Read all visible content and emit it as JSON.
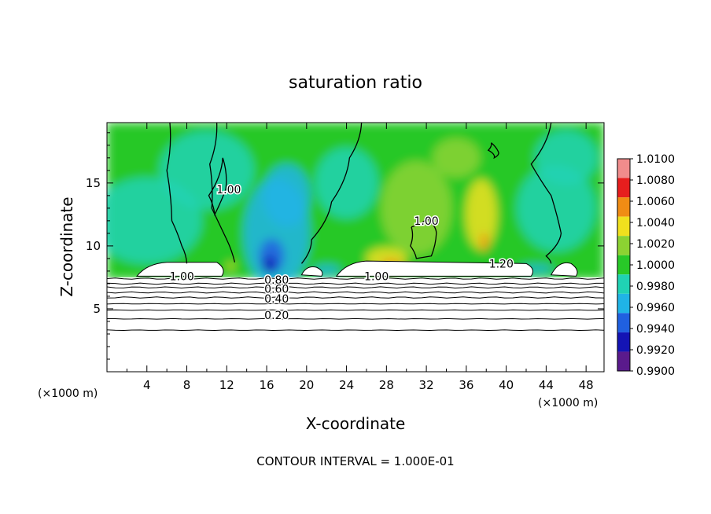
{
  "chart_data": {
    "type": "heatmap",
    "title": "saturation ratio",
    "xlabel": "X-coordinate",
    "ylabel": "Z-coordinate",
    "x_unit_left": "(×1000 m)",
    "x_unit_right": "(×1000 m)",
    "xlim": [
      0,
      49.8
    ],
    "ylim": [
      0,
      19.8
    ],
    "x_ticks": [
      4,
      8,
      12,
      16,
      20,
      24,
      28,
      32,
      36,
      40,
      44,
      48
    ],
    "y_ticks": [
      5,
      10,
      15
    ],
    "footer": "CONTOUR INTERVAL = 1.000E-01",
    "colorbar": {
      "levels": [
        "0.9900",
        "0.9920",
        "0.9940",
        "0.9960",
        "0.9980",
        "1.0000",
        "1.0020",
        "1.0040",
        "1.0060",
        "1.0080",
        "1.0100"
      ],
      "colors": [
        "#5a1a8c",
        "#1414b4",
        "#2060e0",
        "#20b4e6",
        "#20d2b4",
        "#28c828",
        "#8cd232",
        "#f0e01e",
        "#f08c14",
        "#e61e1e",
        "#f08c8c"
      ]
    },
    "contour_labels": [
      {
        "text": "1.00",
        "x": 7.5,
        "y": 7.6
      },
      {
        "text": "1.00",
        "x": 27.0,
        "y": 7.6
      },
      {
        "text": "1.20",
        "x": 39.5,
        "y": 8.6
      },
      {
        "text": "1.00",
        "x": 32.0,
        "y": 12.0
      },
      {
        "text": "1.00",
        "x": 12.2,
        "y": 14.5
      },
      {
        "text": "0.80",
        "x": 17.0,
        "y": 7.3
      },
      {
        "text": "0.60",
        "x": 17.0,
        "y": 6.6
      },
      {
        "text": "0.40",
        "x": 17.0,
        "y": 5.8
      },
      {
        "text": "0.20",
        "x": 17.0,
        "y": 4.5
      }
    ],
    "stable_layer_contours_z": [
      7.4,
      7.0,
      6.7,
      6.3,
      5.9,
      5.4,
      4.9,
      4.2,
      3.3
    ]
  }
}
